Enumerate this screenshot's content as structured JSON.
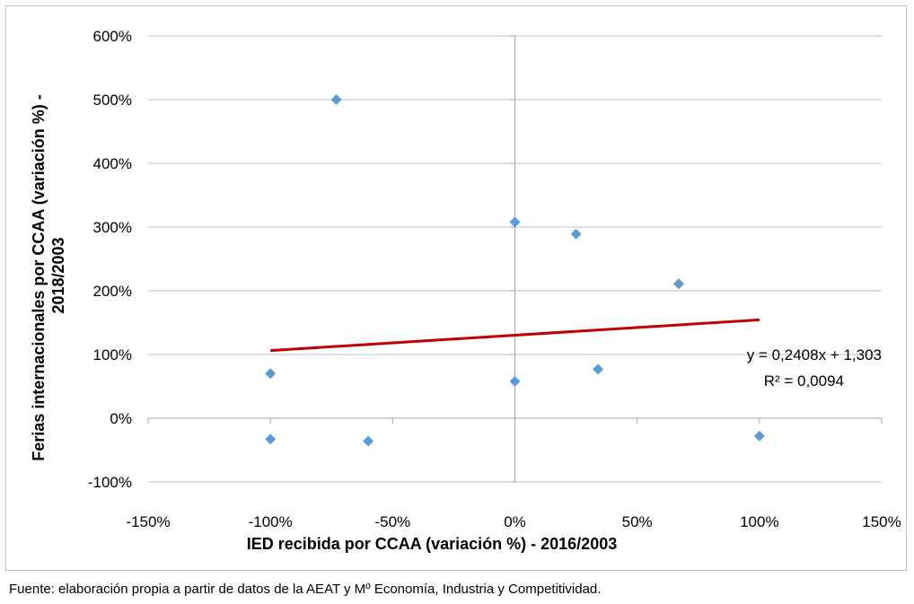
{
  "chart_data": {
    "type": "scatter",
    "xlabel": "IED recibida por CCAA (variación %) - 2016/2003",
    "ylabel_line1": "Ferias internacionales por CCAA (variación %) -",
    "ylabel_line2": "2018/2003",
    "xlim": [
      -1.5,
      1.5
    ],
    "ylim": [
      -1.0,
      6.0
    ],
    "x_ticks": [
      -1.5,
      -1.0,
      -0.5,
      0.0,
      0.5,
      1.0,
      1.5
    ],
    "x_tick_labels": [
      "-150%",
      "-100%",
      "-50%",
      "0%",
      "50%",
      "100%",
      "150%"
    ],
    "y_ticks": [
      -1,
      0,
      1,
      2,
      3,
      4,
      5,
      6
    ],
    "y_tick_labels": [
      "-100%",
      "0%",
      "100%",
      "200%",
      "300%",
      "400%",
      "500%",
      "600%"
    ],
    "grid": "horizontal",
    "points": [
      {
        "x": -0.73,
        "y": 5.0
      },
      {
        "x": 0.0,
        "y": 3.08
      },
      {
        "x": 0.25,
        "y": 2.89
      },
      {
        "x": 0.67,
        "y": 2.11
      },
      {
        "x": -1.0,
        "y": 0.7
      },
      {
        "x": 0.0,
        "y": 0.58
      },
      {
        "x": 0.34,
        "y": 0.77
      },
      {
        "x": -1.0,
        "y": -0.33
      },
      {
        "x": -0.6,
        "y": -0.36
      },
      {
        "x": 1.0,
        "y": -0.28
      }
    ],
    "trendline": {
      "slope": 0.2408,
      "intercept": 1.303,
      "x_range": [
        -1.0,
        1.0
      ],
      "equation": "y = 0,2408x + 1,303",
      "r2": "R² = 0,0094"
    },
    "colors": {
      "marker": "#5b9bd5",
      "trendline": "#c00000",
      "gridline": "#bfbfbf",
      "axis": "#a6a6a6"
    }
  },
  "source_note": "Fuente: elaboración propia a partir de datos de la AEAT y Mº Economía, Industria y Competitividad."
}
